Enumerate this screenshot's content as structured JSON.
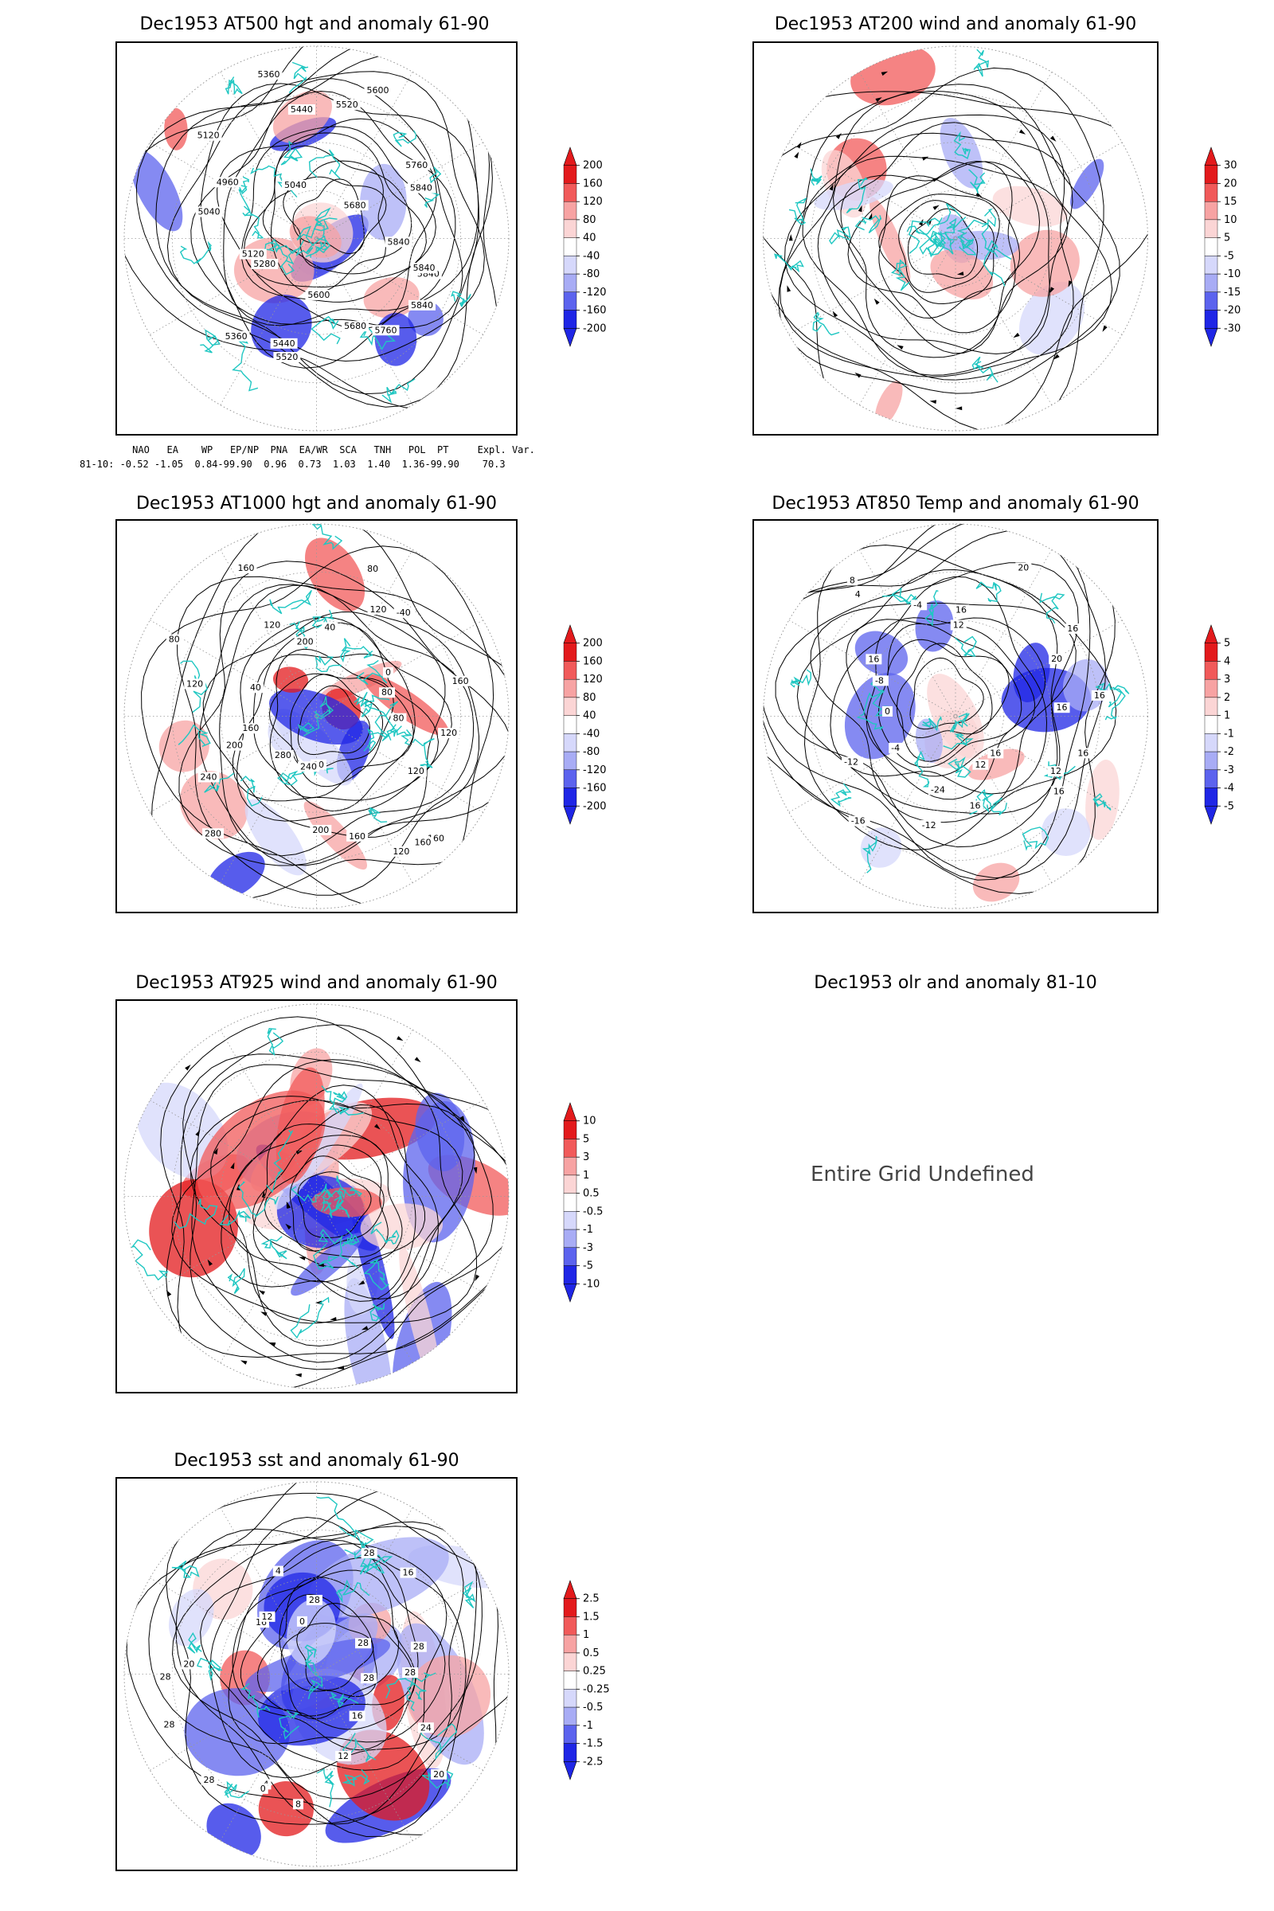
{
  "panels": [
    {
      "id": "p1",
      "title": "Dec1953 AT500 hgt and anomaly 61-90",
      "colorbar": {
        "labels": [
          "200",
          "160",
          "120",
          "80",
          "40",
          "-40",
          "-80",
          "-120",
          "-160",
          "-200"
        ]
      },
      "contour_labels": [
        "5840",
        "5840",
        "5840",
        "5760",
        "5680",
        "5600",
        "5520",
        "5440",
        "5360",
        "5280",
        "5120",
        "5040",
        "4960",
        "5120",
        "5040",
        "5360",
        "5440",
        "5520",
        "5600",
        "5680",
        "5760",
        "5840",
        "5840"
      ]
    },
    {
      "id": "p2",
      "title": "Dec1953 AT200 wind and anomaly 61-90",
      "colorbar": {
        "labels": [
          "30",
          "20",
          "15",
          "10",
          "5",
          "-5",
          "-10",
          "-15",
          "-20",
          "-30"
        ]
      },
      "contour_labels": []
    },
    {
      "id": "p3",
      "title": "Dec1953 AT1000 hgt and anomaly 61-90",
      "colorbar": {
        "labels": [
          "200",
          "160",
          "120",
          "80",
          "40",
          "-40",
          "-80",
          "-120",
          "-160",
          "-200"
        ]
      },
      "contour_labels": [
        "80",
        "120",
        "160",
        "160",
        "120",
        "160",
        "80",
        "200",
        "240",
        "280",
        "280",
        "240",
        "200",
        "160",
        "120",
        "40",
        "80",
        "120",
        "160",
        "200",
        "40",
        "80",
        "120",
        "-40",
        "0",
        "80",
        "160",
        "120"
      ]
    },
    {
      "id": "p4",
      "title": "Dec1953 AT850 Temp and anomaly 61-90",
      "colorbar": {
        "labels": [
          "5",
          "4",
          "3",
          "2",
          "1",
          "-1",
          "-2",
          "-3",
          "-4",
          "-5"
        ]
      },
      "contour_labels": [
        "16",
        "12",
        "16",
        "16",
        "12",
        "16",
        "-24",
        "-12",
        "-16",
        "-12",
        "-4",
        "0",
        "-8",
        "16",
        "8",
        "4",
        "-4",
        "12",
        "16",
        "20",
        "16",
        "20",
        "16",
        "16"
      ]
    },
    {
      "id": "p5",
      "title": "Dec1953 AT925 wind and anomaly 61-90",
      "colorbar": {
        "labels": [
          "10",
          "5",
          "3",
          "1",
          "0.5",
          "-0.5",
          "-1",
          "-3",
          "-5",
          "-10"
        ]
      },
      "contour_labels": []
    },
    {
      "id": "p6",
      "title": "Dec1953 olr and anomaly 81-10",
      "message": "Entire Grid Undefined"
    },
    {
      "id": "p7",
      "title": "Dec1953 sst and anomaly 61-90",
      "colorbar": {
        "labels": [
          "2.5",
          "1.5",
          "1",
          "0.5",
          "0.25",
          "-0.25",
          "-0.5",
          "-1",
          "-1.5",
          "-2.5"
        ]
      },
      "contour_labels": [
        "28",
        "24",
        "20",
        "16",
        "12",
        "8",
        "4",
        "0",
        "28",
        "28",
        "28",
        "20",
        "16",
        "12",
        "4",
        "0",
        "28",
        "28",
        "16",
        "28",
        "28",
        "28"
      ]
    }
  ],
  "indices": {
    "header": "     NAO   EA    WP   EP/NP  PNA  EA/WR  SCA   TNH   POL  PT     Expl. Var.",
    "values": "81-10: -0.52 -1.05  0.84-99.90  0.96  0.73  1.03  1.40  1.36-99.90    70.3"
  },
  "colors": {
    "red_dark": "#e31a1c",
    "red_mid": "#f15a5a",
    "red_light": "#f7a3a3",
    "red_pale": "#fbd5d5",
    "blue_pale": "#d6d8fb",
    "blue_light": "#a8acf5",
    "blue_mid": "#5c63ee",
    "blue_dark": "#1f26e6",
    "coast": "#1fc7c2",
    "contour": "#000000",
    "grid": "#999999"
  }
}
